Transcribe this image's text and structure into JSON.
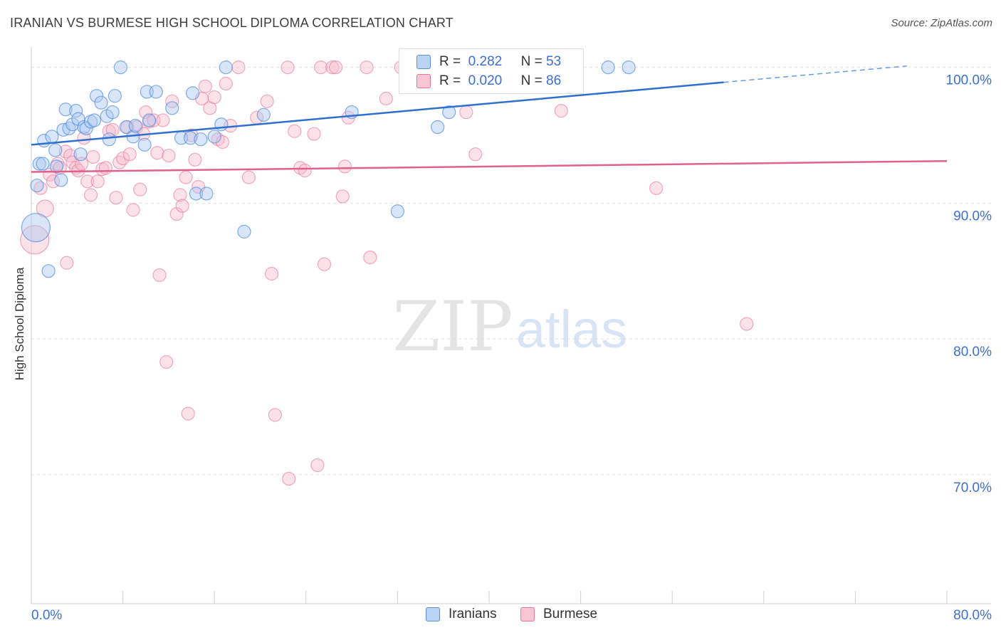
{
  "title": "IRANIAN VS BURMESE HIGH SCHOOL DIPLOMA CORRELATION CHART",
  "source": "Source: ZipAtlas.com",
  "watermark": {
    "zip": "ZIP",
    "atlas": "atlas"
  },
  "colors": {
    "iranians": "#4f8be0",
    "iranians_fill": "#aac8f2",
    "burmese": "#e8759a",
    "burmese_fill": "#f6bccd",
    "axis_label": "#3a6fd8",
    "grid": "#e3e3e3"
  },
  "legend": {
    "rows": [
      {
        "r_label": "R =",
        "r_value": "0.282",
        "n_label": "N =",
        "n_value": "53"
      },
      {
        "r_label": "R =",
        "r_value": "0.020",
        "n_label": "N =",
        "n_value": "86"
      }
    ]
  },
  "bottom_legend": {
    "iranians": "Iranians",
    "burmese": "Burmese"
  },
  "chart_data": {
    "type": "scatter",
    "title": "IRANIAN VS BURMESE HIGH SCHOOL DIPLOMA CORRELATION CHART",
    "xlabel": "",
    "ylabel": "High School Diploma",
    "xlim": [
      0,
      80
    ],
    "ylim": [
      60.5,
      101.5
    ],
    "x_tick_labels": [
      {
        "value": 0,
        "label": "0.0%"
      },
      {
        "value": 80,
        "label": "80.0%"
      }
    ],
    "y_tick_labels": [
      {
        "value": 100,
        "label": "100.0%"
      },
      {
        "value": 90,
        "label": "90.0%"
      },
      {
        "value": 80,
        "label": "80.0%"
      },
      {
        "value": 70,
        "label": "70.0%"
      }
    ],
    "y_gridlines": [
      100,
      90,
      80,
      70
    ],
    "series": [
      {
        "name": "Iranians",
        "color": "#4f8be0",
        "trendline": {
          "x0": 0,
          "y0": 94.3,
          "x1": 60.5,
          "y1": 98.9,
          "dashed_to_x": 76.5,
          "dashed_to_y": 100.1
        },
        "points": [
          [
            0.4,
            88.2
          ],
          [
            0.5,
            91.3
          ],
          [
            0.7,
            92.9
          ],
          [
            1.0,
            92.9
          ],
          [
            1.1,
            94.6
          ],
          [
            1.5,
            85.0
          ],
          [
            1.8,
            94.9
          ],
          [
            2.1,
            93.9
          ],
          [
            2.2,
            92.7
          ],
          [
            2.6,
            91.7
          ],
          [
            2.8,
            95.4
          ],
          [
            3.0,
            96.9
          ],
          [
            3.3,
            95.5
          ],
          [
            3.6,
            95.8
          ],
          [
            3.9,
            96.8
          ],
          [
            4.1,
            96.2
          ],
          [
            4.3,
            93.6
          ],
          [
            4.6,
            95.6
          ],
          [
            4.8,
            95.5
          ],
          [
            5.2,
            96.0
          ],
          [
            5.5,
            96.1
          ],
          [
            5.7,
            97.9
          ],
          [
            6.1,
            97.4
          ],
          [
            6.6,
            96.4
          ],
          [
            6.8,
            94.7
          ],
          [
            7.1,
            96.7
          ],
          [
            7.3,
            97.9
          ],
          [
            7.8,
            100.0
          ],
          [
            8.3,
            95.6
          ],
          [
            8.9,
            94.9
          ],
          [
            9.1,
            95.7
          ],
          [
            9.9,
            94.3
          ],
          [
            10.1,
            98.2
          ],
          [
            10.3,
            96.1
          ],
          [
            10.9,
            98.2
          ],
          [
            12.3,
            97.0
          ],
          [
            13.1,
            94.8
          ],
          [
            13.9,
            94.8
          ],
          [
            14.1,
            98.1
          ],
          [
            14.4,
            90.7
          ],
          [
            14.8,
            94.7
          ],
          [
            15.3,
            90.7
          ],
          [
            16.0,
            94.9
          ],
          [
            16.6,
            95.8
          ],
          [
            17.0,
            100.0
          ],
          [
            18.6,
            87.9
          ],
          [
            20.3,
            96.5
          ],
          [
            28.0,
            96.7
          ],
          [
            32.0,
            89.4
          ],
          [
            35.5,
            95.6
          ],
          [
            36.5,
            96.7
          ],
          [
            50.4,
            100.0
          ],
          [
            52.2,
            100.0
          ]
        ]
      },
      {
        "name": "Burmese",
        "color": "#e8759a",
        "trendline": {
          "x0": 0,
          "y0": 92.3,
          "x1": 80,
          "y1": 93.1
        },
        "points": [
          [
            0.3,
            87.3
          ],
          [
            0.8,
            91.1
          ],
          [
            1.2,
            89.6
          ],
          [
            1.6,
            92.1
          ],
          [
            1.9,
            91.6
          ],
          [
            2.3,
            92.9
          ],
          [
            2.5,
            92.6
          ],
          [
            3.0,
            93.8
          ],
          [
            3.1,
            85.6
          ],
          [
            3.4,
            93.5
          ],
          [
            3.6,
            93.0
          ],
          [
            3.9,
            92.6
          ],
          [
            4.1,
            92.4
          ],
          [
            4.4,
            92.9
          ],
          [
            4.6,
            94.8
          ],
          [
            4.9,
            91.6
          ],
          [
            5.2,
            90.6
          ],
          [
            5.4,
            93.4
          ],
          [
            5.8,
            91.6
          ],
          [
            6.2,
            92.5
          ],
          [
            6.5,
            92.6
          ],
          [
            6.8,
            95.3
          ],
          [
            7.1,
            95.4
          ],
          [
            7.4,
            90.4
          ],
          [
            7.7,
            93.0
          ],
          [
            8.0,
            93.3
          ],
          [
            8.4,
            95.6
          ],
          [
            8.6,
            93.6
          ],
          [
            8.9,
            89.5
          ],
          [
            9.2,
            95.6
          ],
          [
            9.5,
            91.0
          ],
          [
            9.8,
            95.1
          ],
          [
            10.0,
            96.7
          ],
          [
            10.3,
            96.0
          ],
          [
            10.7,
            96.1
          ],
          [
            11.0,
            93.7
          ],
          [
            11.2,
            84.7
          ],
          [
            11.5,
            96.1
          ],
          [
            11.8,
            78.3
          ],
          [
            12.0,
            93.5
          ],
          [
            12.3,
            97.5
          ],
          [
            12.7,
            89.2
          ],
          [
            13.0,
            90.6
          ],
          [
            13.2,
            89.8
          ],
          [
            13.5,
            91.9
          ],
          [
            13.7,
            74.5
          ],
          [
            14.0,
            95.0
          ],
          [
            14.3,
            93.2
          ],
          [
            14.6,
            91.2
          ],
          [
            14.9,
            97.7
          ],
          [
            15.2,
            98.6
          ],
          [
            15.6,
            97.0
          ],
          [
            16.0,
            97.8
          ],
          [
            16.3,
            94.7
          ],
          [
            16.7,
            94.5
          ],
          [
            17.0,
            98.8
          ],
          [
            17.4,
            95.7
          ],
          [
            18.1,
            100.0
          ],
          [
            19.0,
            91.9
          ],
          [
            19.7,
            96.3
          ],
          [
            20.6,
            97.5
          ],
          [
            21.0,
            84.8
          ],
          [
            21.3,
            74.4
          ],
          [
            22.4,
            100.0
          ],
          [
            22.5,
            69.7
          ],
          [
            23.0,
            95.3
          ],
          [
            23.5,
            92.6
          ],
          [
            23.9,
            92.4
          ],
          [
            24.7,
            95.1
          ],
          [
            25.0,
            70.7
          ],
          [
            25.3,
            100.0
          ],
          [
            25.6,
            85.5
          ],
          [
            26.3,
            100.0
          ],
          [
            26.6,
            100.0
          ],
          [
            27.2,
            90.5
          ],
          [
            27.4,
            92.7
          ],
          [
            27.7,
            96.3
          ],
          [
            29.3,
            100.0
          ],
          [
            29.6,
            86.0
          ],
          [
            31.0,
            97.7
          ],
          [
            32.3,
            100.0
          ],
          [
            38.0,
            96.7
          ],
          [
            38.8,
            93.6
          ],
          [
            46.3,
            96.8
          ],
          [
            54.6,
            91.1
          ],
          [
            62.5,
            81.1
          ]
        ]
      }
    ]
  }
}
